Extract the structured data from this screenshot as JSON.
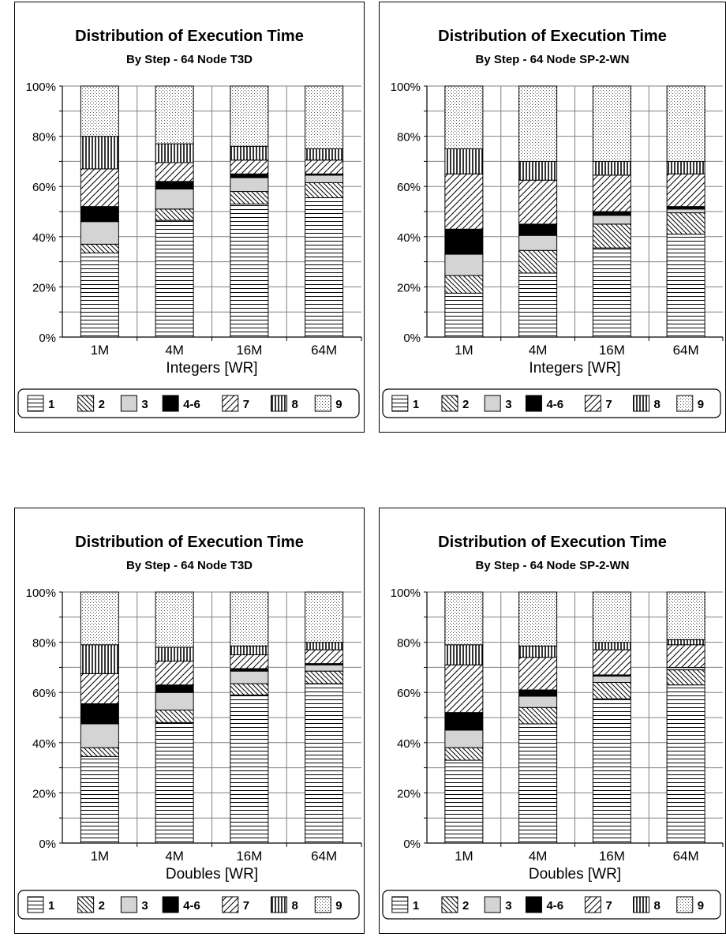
{
  "legend": {
    "keys": [
      "1",
      "2",
      "3",
      "4-6",
      "7",
      "8",
      "9"
    ]
  },
  "chart_data": [
    {
      "type": "bar",
      "stacked": true,
      "title": "Distribution of Execution Time",
      "subtitle": "By Step - 64 Node T3D",
      "xlabel": "Integers  [WR]",
      "ylabel": "",
      "categories": [
        "1M",
        "4M",
        "16M",
        "64M"
      ],
      "ylim": [
        0,
        100
      ],
      "yticks": [
        "0%",
        "20%",
        "40%",
        "60%",
        "80%",
        "100%"
      ],
      "grid": true,
      "legend_position": "bottom",
      "series": [
        {
          "name": "1",
          "values": [
            33.5,
            46.5,
            53,
            55.5
          ]
        },
        {
          "name": "2",
          "values": [
            3.5,
            4.5,
            5,
            6
          ]
        },
        {
          "name": "3",
          "values": [
            9,
            8,
            5.5,
            3
          ]
        },
        {
          "name": "4-6",
          "values": [
            6,
            3,
            1.5,
            0.5
          ]
        },
        {
          "name": "7",
          "values": [
            15,
            7.5,
            5.5,
            5.5
          ]
        },
        {
          "name": "8",
          "values": [
            13,
            7.5,
            5.5,
            4.5
          ]
        },
        {
          "name": "9",
          "values": [
            20,
            23,
            24,
            25
          ]
        }
      ]
    },
    {
      "type": "bar",
      "stacked": true,
      "title": "Distribution of Execution Time",
      "subtitle": "By Step - 64 Node SP-2-WN",
      "xlabel": "Integers  [WR]",
      "ylabel": "",
      "categories": [
        "1M",
        "4M",
        "16M",
        "64M"
      ],
      "ylim": [
        0,
        100
      ],
      "yticks": [
        "0%",
        "20%",
        "40%",
        "60%",
        "80%",
        "100%"
      ],
      "grid": true,
      "legend_position": "bottom",
      "series": [
        {
          "name": "1",
          "values": [
            17.5,
            25.5,
            35.5,
            41
          ]
        },
        {
          "name": "2",
          "values": [
            7,
            9,
            9.5,
            8.5
          ]
        },
        {
          "name": "3",
          "values": [
            8.5,
            6,
            3.5,
            1.5
          ]
        },
        {
          "name": "4-6",
          "values": [
            10,
            4.5,
            1.5,
            1
          ]
        },
        {
          "name": "7",
          "values": [
            22,
            17.5,
            14.5,
            13
          ]
        },
        {
          "name": "8",
          "values": [
            10,
            7.5,
            5.5,
            5
          ]
        },
        {
          "name": "9",
          "values": [
            25,
            30,
            30,
            30
          ]
        }
      ]
    },
    {
      "type": "bar",
      "stacked": true,
      "title": "Distribution of Execution Time",
      "subtitle": "By Step - 64 Node T3D",
      "xlabel": "Doubles  [WR]",
      "ylabel": "",
      "categories": [
        "1M",
        "4M",
        "16M",
        "64M"
      ],
      "ylim": [
        0,
        100
      ],
      "yticks": [
        "0%",
        "20%",
        "40%",
        "60%",
        "80%",
        "100%"
      ],
      "grid": true,
      "legend_position": "bottom",
      "series": [
        {
          "name": "1",
          "values": [
            34.5,
            48,
            59,
            63.5
          ]
        },
        {
          "name": "2",
          "values": [
            3.5,
            5,
            4.5,
            5
          ]
        },
        {
          "name": "3",
          "values": [
            9.5,
            7,
            5,
            2.5
          ]
        },
        {
          "name": "4-6",
          "values": [
            8,
            3,
            1,
            0.5
          ]
        },
        {
          "name": "7",
          "values": [
            12,
            9.5,
            5.5,
            5.5
          ]
        },
        {
          "name": "8",
          "values": [
            11.5,
            5.5,
            3.5,
            3
          ]
        },
        {
          "name": "9",
          "values": [
            21,
            22,
            21.5,
            20
          ]
        }
      ]
    },
    {
      "type": "bar",
      "stacked": true,
      "title": "Distribution of Execution Time",
      "subtitle": "By Step - 64 Node SP-2-WN",
      "xlabel": "Doubles  [WR]",
      "ylabel": "",
      "categories": [
        "1M",
        "4M",
        "16M",
        "64M"
      ],
      "ylim": [
        0,
        100
      ],
      "yticks": [
        "0%",
        "20%",
        "40%",
        "60%",
        "80%",
        "100%"
      ],
      "grid": true,
      "legend_position": "bottom",
      "series": [
        {
          "name": "1",
          "values": [
            33,
            47.5,
            57.5,
            63
          ]
        },
        {
          "name": "2",
          "values": [
            5,
            6.5,
            6.5,
            6
          ]
        },
        {
          "name": "3",
          "values": [
            7,
            4.5,
            2.5,
            1
          ]
        },
        {
          "name": "4-6",
          "values": [
            7,
            2.5,
            0.5,
            0
          ]
        },
        {
          "name": "7",
          "values": [
            19,
            13,
            10,
            9
          ]
        },
        {
          "name": "8",
          "values": [
            8,
            4.5,
            3,
            2
          ]
        },
        {
          "name": "9",
          "values": [
            21,
            21.5,
            20,
            19
          ]
        }
      ]
    }
  ]
}
